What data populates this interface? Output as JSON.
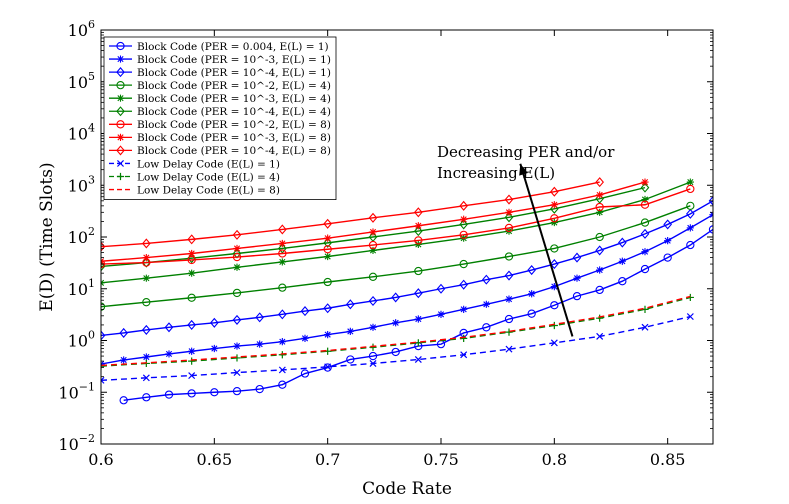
{
  "chart_data": {
    "type": "line",
    "xlabel": "Code Rate",
    "ylabel": "E(D) (Time Slots)",
    "yscale": "log",
    "xlim": [
      0.6,
      0.87
    ],
    "ylim": [
      0.01,
      1000000
    ],
    "xticks": [
      "0.6",
      "0.65",
      "0.7",
      "0.75",
      "0.8",
      "0.85"
    ],
    "xtick_values": [
      0.6,
      0.65,
      0.7,
      0.75,
      0.8,
      0.85
    ],
    "ytick_exponents": [
      -2,
      -1,
      0,
      1,
      2,
      3,
      4,
      5,
      6
    ],
    "ytick_base": "10",
    "legend_position": "top-left",
    "annotation": {
      "line1": "Decreasing PER and/or",
      "line2": "Increasing E(L)",
      "arrow_from": [
        0.808,
        1.2
      ],
      "arrow_to": [
        0.785,
        2600
      ]
    },
    "series": [
      {
        "name": "Block Code (PER = 0.004, E(L) = 1)",
        "color": "#0000ff",
        "dash": "solid",
        "marker": "o",
        "x": [
          0.61,
          0.62,
          0.63,
          0.64,
          0.65,
          0.66,
          0.67,
          0.68,
          0.69,
          0.7,
          0.71,
          0.72,
          0.73,
          0.74,
          0.75,
          0.76,
          0.77,
          0.78,
          0.79,
          0.8,
          0.81,
          0.82,
          0.83,
          0.84,
          0.85,
          0.86,
          0.87
        ],
        "y": [
          0.07,
          0.08,
          0.09,
          0.095,
          0.1,
          0.105,
          0.115,
          0.14,
          0.23,
          0.3,
          0.43,
          0.5,
          0.6,
          0.78,
          0.85,
          1.4,
          1.8,
          2.6,
          3.3,
          4.8,
          7.2,
          9.5,
          14,
          24,
          40,
          70,
          140
        ]
      },
      {
        "name": "Block Code (PER = 10^-3, E(L) = 1)",
        "color": "#0000ff",
        "dash": "solid",
        "marker": "*",
        "x": [
          0.6,
          0.61,
          0.62,
          0.63,
          0.64,
          0.65,
          0.66,
          0.67,
          0.68,
          0.69,
          0.7,
          0.71,
          0.72,
          0.73,
          0.74,
          0.75,
          0.76,
          0.77,
          0.78,
          0.79,
          0.8,
          0.81,
          0.82,
          0.83,
          0.84,
          0.85,
          0.86,
          0.87
        ],
        "y": [
          0.35,
          0.42,
          0.48,
          0.55,
          0.62,
          0.7,
          0.78,
          0.85,
          0.95,
          1.1,
          1.3,
          1.5,
          1.8,
          2.2,
          2.6,
          3.2,
          4.0,
          5.0,
          6.3,
          8.0,
          11,
          16,
          23,
          34,
          52,
          85,
          150,
          270
        ]
      },
      {
        "name": "Block Code (PER = 10^-4, E(L) = 1)",
        "color": "#0000ff",
        "dash": "solid",
        "marker": "d",
        "x": [
          0.6,
          0.61,
          0.62,
          0.63,
          0.64,
          0.65,
          0.66,
          0.67,
          0.68,
          0.69,
          0.7,
          0.71,
          0.72,
          0.73,
          0.74,
          0.75,
          0.76,
          0.77,
          0.78,
          0.79,
          0.8,
          0.81,
          0.82,
          0.83,
          0.84,
          0.85,
          0.86,
          0.87
        ],
        "y": [
          1.25,
          1.4,
          1.6,
          1.8,
          2.0,
          2.2,
          2.5,
          2.8,
          3.2,
          3.7,
          4.2,
          5.0,
          5.8,
          6.8,
          8.2,
          10,
          12,
          15,
          18,
          23,
          30,
          40,
          55,
          78,
          115,
          175,
          280,
          500
        ]
      },
      {
        "name": "Block Code (PER = 10^-2, E(L) = 4)",
        "color": "#008000",
        "dash": "solid",
        "marker": "o",
        "x": [
          0.6,
          0.62,
          0.64,
          0.66,
          0.68,
          0.7,
          0.72,
          0.74,
          0.76,
          0.78,
          0.8,
          0.82,
          0.84,
          0.86
        ],
        "y": [
          4.5,
          5.5,
          6.7,
          8.3,
          10.5,
          13.5,
          17,
          22,
          30,
          42,
          60,
          100,
          190,
          400
        ]
      },
      {
        "name": "Block Code (PER = 10^-3, E(L) = 4)",
        "color": "#008000",
        "dash": "solid",
        "marker": "*",
        "x": [
          0.6,
          0.62,
          0.64,
          0.66,
          0.68,
          0.7,
          0.72,
          0.74,
          0.76,
          0.78,
          0.8,
          0.82,
          0.84,
          0.86
        ],
        "y": [
          13,
          16,
          20,
          26,
          33,
          42,
          55,
          72,
          95,
          130,
          190,
          300,
          530,
          1150
        ]
      },
      {
        "name": "Block Code (PER = 10^-4, E(L) = 4)",
        "color": "#008000",
        "dash": "solid",
        "marker": "d",
        "x": [
          0.6,
          0.62,
          0.64,
          0.66,
          0.68,
          0.7,
          0.72,
          0.74,
          0.76,
          0.78,
          0.8,
          0.82,
          0.84
        ],
        "y": [
          27,
          32,
          39,
          48,
          60,
          77,
          100,
          130,
          175,
          240,
          350,
          550,
          900
        ]
      },
      {
        "name": "Block Code (PER = 10^-2, E(L) = 8)",
        "color": "#ff0000",
        "dash": "solid",
        "marker": "o",
        "x": [
          0.6,
          0.62,
          0.64,
          0.66,
          0.68,
          0.7,
          0.72,
          0.74,
          0.76,
          0.78,
          0.8,
          0.82,
          0.84,
          0.86
        ],
        "y": [
          30,
          32,
          36,
          41,
          48,
          58,
          70,
          86,
          110,
          150,
          230,
          380,
          420,
          850
        ]
      },
      {
        "name": "Block Code (PER = 10^-3, E(L) = 8)",
        "color": "#ff0000",
        "dash": "solid",
        "marker": "*",
        "x": [
          0.6,
          0.62,
          0.64,
          0.66,
          0.68,
          0.7,
          0.72,
          0.74,
          0.76,
          0.78,
          0.8,
          0.82,
          0.84
        ],
        "y": [
          34,
          40,
          48,
          60,
          75,
          95,
          125,
          165,
          220,
          300,
          420,
          650,
          1150
        ]
      },
      {
        "name": "Block Code (PER = 10^-4, E(L) = 8)",
        "color": "#ff0000",
        "dash": "solid",
        "marker": "d",
        "x": [
          0.6,
          0.62,
          0.64,
          0.66,
          0.68,
          0.7,
          0.72,
          0.74,
          0.76,
          0.78,
          0.8,
          0.82
        ],
        "y": [
          65,
          75,
          90,
          110,
          140,
          180,
          235,
          300,
          400,
          530,
          750,
          1150
        ]
      },
      {
        "name": "Low Delay Code (E(L) = 1)",
        "color": "#0000ff",
        "dash": "dashed",
        "marker": "x",
        "x": [
          0.6,
          0.62,
          0.64,
          0.66,
          0.68,
          0.7,
          0.72,
          0.74,
          0.76,
          0.78,
          0.8,
          0.82,
          0.84,
          0.86
        ],
        "y": [
          0.17,
          0.19,
          0.21,
          0.24,
          0.27,
          0.31,
          0.36,
          0.43,
          0.53,
          0.68,
          0.9,
          1.2,
          1.8,
          2.9
        ]
      },
      {
        "name": "Low Delay Code (E(L) = 4)",
        "color": "#008000",
        "dash": "dashed",
        "marker": "+",
        "x": [
          0.6,
          0.62,
          0.64,
          0.66,
          0.68,
          0.7,
          0.72,
          0.74,
          0.76,
          0.78,
          0.8,
          0.82,
          0.84,
          0.86
        ],
        "y": [
          0.32,
          0.36,
          0.4,
          0.46,
          0.53,
          0.62,
          0.74,
          0.9,
          1.1,
          1.45,
          1.95,
          2.7,
          4.0,
          6.8
        ]
      },
      {
        "name": "Low Delay Code (E(L) = 8)",
        "color": "#ff0000",
        "dash": "dashed",
        "marker": "none",
        "x": [
          0.6,
          0.62,
          0.64,
          0.66,
          0.68,
          0.7,
          0.72,
          0.74,
          0.76,
          0.78,
          0.8,
          0.82,
          0.84,
          0.86
        ],
        "y": [
          0.33,
          0.37,
          0.42,
          0.48,
          0.55,
          0.64,
          0.77,
          0.93,
          1.15,
          1.5,
          2.05,
          2.85,
          4.2,
          7.1
        ]
      }
    ]
  }
}
